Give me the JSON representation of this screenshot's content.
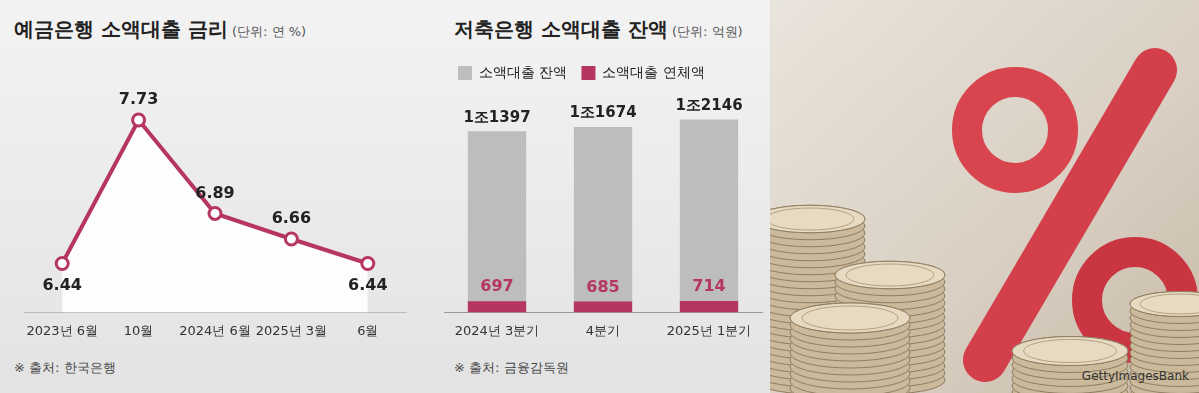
{
  "chart_data": [
    {
      "type": "line",
      "title": "예금은행 소액대출 금리",
      "subtitle": "(단위: 연 %)",
      "categories": [
        "2023년 6월",
        "10월",
        "2024년 6월",
        "2025년 3월",
        "6월"
      ],
      "values": [
        6.44,
        7.73,
        6.89,
        6.66,
        6.44
      ],
      "color": "#b5365e",
      "marker": "circle",
      "data_labels": true,
      "tick_labels": "x",
      "grid": false,
      "source": "※ 출처: 한국은행"
    },
    {
      "type": "bar",
      "title": "저축은행 소액대출 잔액",
      "subtitle": "(단위: 억원)",
      "categories": [
        "2024년 3분기",
        "4분기",
        "2025년 1분기"
      ],
      "series": [
        {
          "name": "소액대출 잔액",
          "color": "#bdbdbd",
          "values": [
            11397,
            11674,
            12146
          ],
          "value_labels": [
            "1조1397",
            "1조1674",
            "1조2146"
          ]
        },
        {
          "name": "소액대출 연체액",
          "color": "#b5365e",
          "values": [
            697,
            685,
            714
          ]
        }
      ],
      "stacked": false,
      "data_labels": true,
      "tick_labels": "x",
      "grid": false,
      "legend": "top-left",
      "source": "※ 출처: 금융감독원"
    }
  ],
  "image_credit": "GettyImagesBank"
}
